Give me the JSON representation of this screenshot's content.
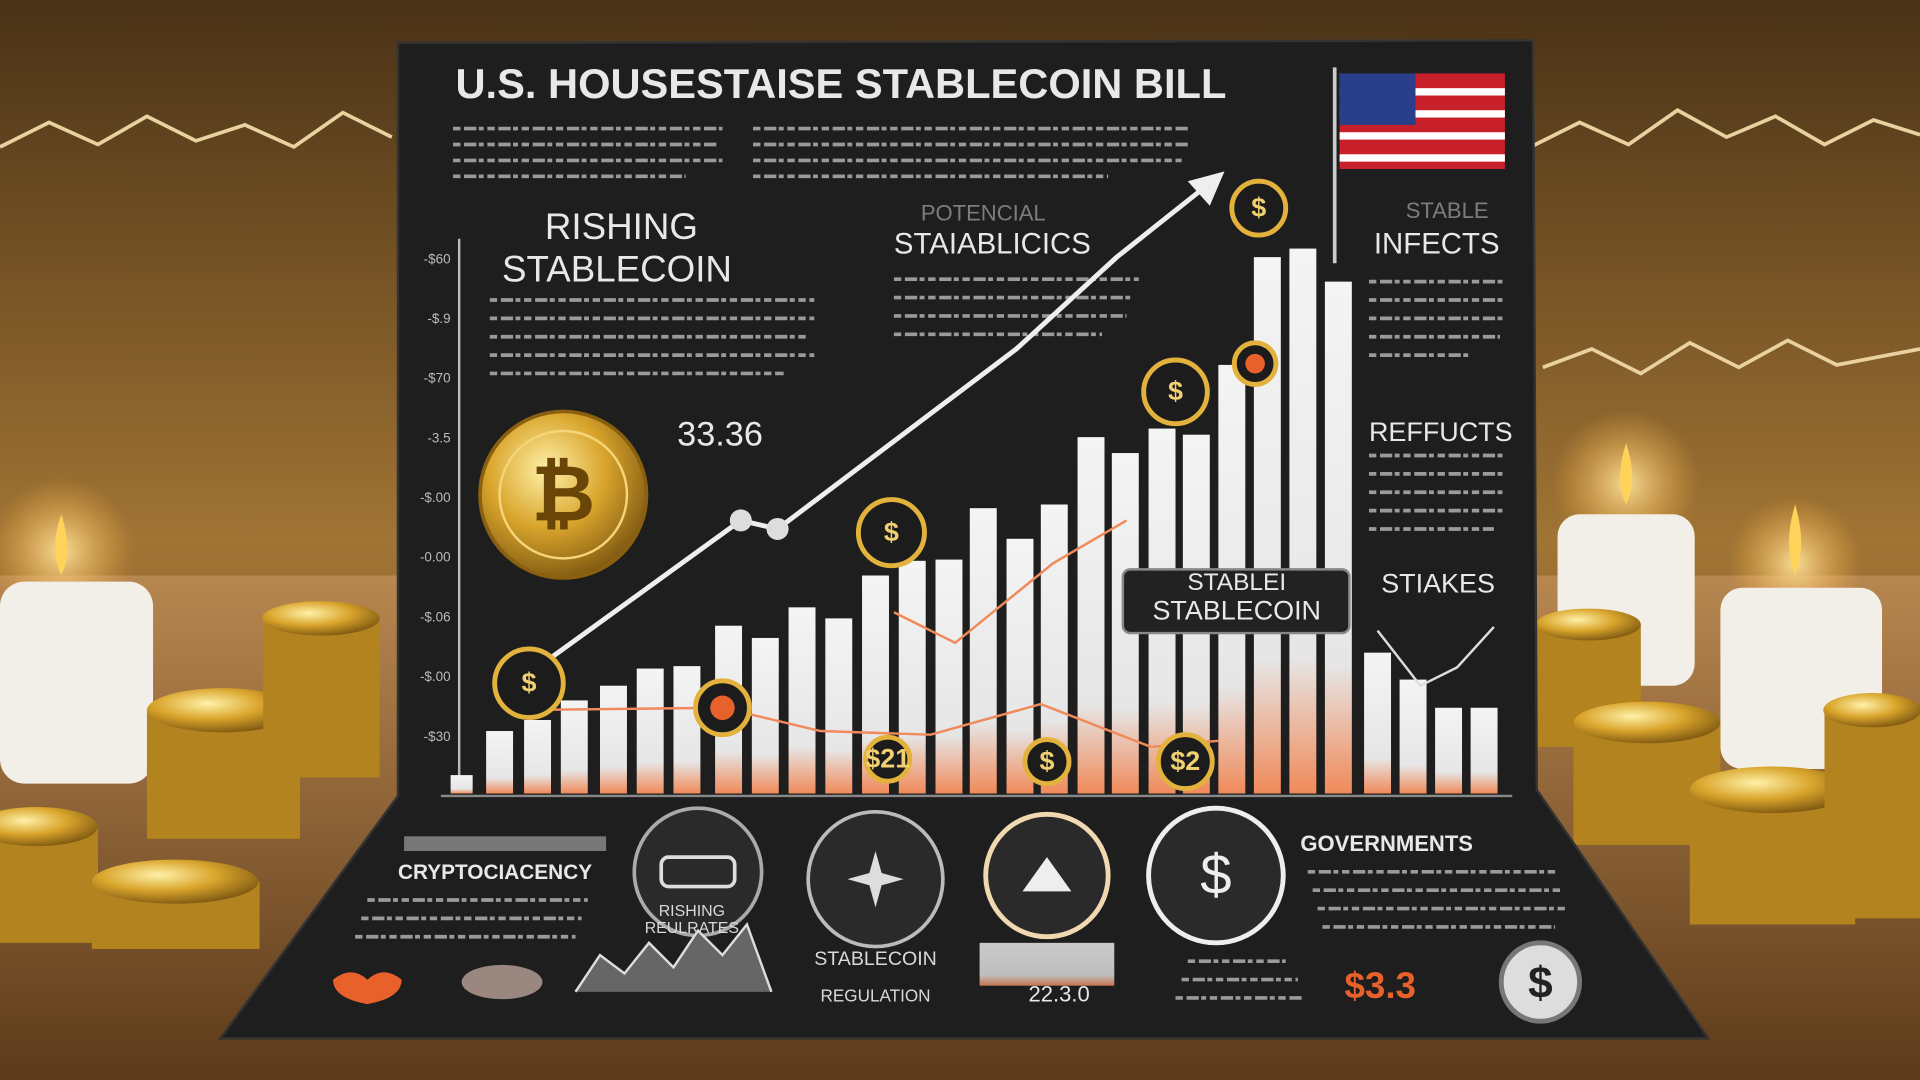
{
  "title": "U.S. HOUSESTAISE STABLECOIN BILL",
  "left_panel": {
    "heading": [
      "RISHING",
      "STABLECOIN"
    ],
    "value": "33.36"
  },
  "center_panel": {
    "kicker": "POTENCIAL",
    "heading": "STAIABLICICS"
  },
  "right_panel": {
    "kicker": "STABLE",
    "headings": [
      "INFECTS",
      "REFFUCTS",
      "STIAKES"
    ]
  },
  "axis_labels": [
    "-$60",
    "-$.9",
    "-$70",
    "-3.5",
    "-$.00",
    "-0.00",
    "-$.06",
    "-$.00",
    "-$30"
  ],
  "chart_badge": [
    "STABLEI",
    "STABLECOIN"
  ],
  "coin_labels": [
    "$",
    "$",
    "$",
    "$",
    "$"
  ],
  "bottom_coin_labels": [
    "$21",
    "$",
    "$2"
  ],
  "bottom": {
    "crypto": "CRYPTOCIACENCY",
    "rising": [
      "RISHING",
      "REULRATES"
    ],
    "regulation": [
      "STABLECOIN",
      "REGULATION"
    ],
    "figure": "22.3.0",
    "governments": "GOVERNMENTS",
    "price": "$3.3"
  }
}
